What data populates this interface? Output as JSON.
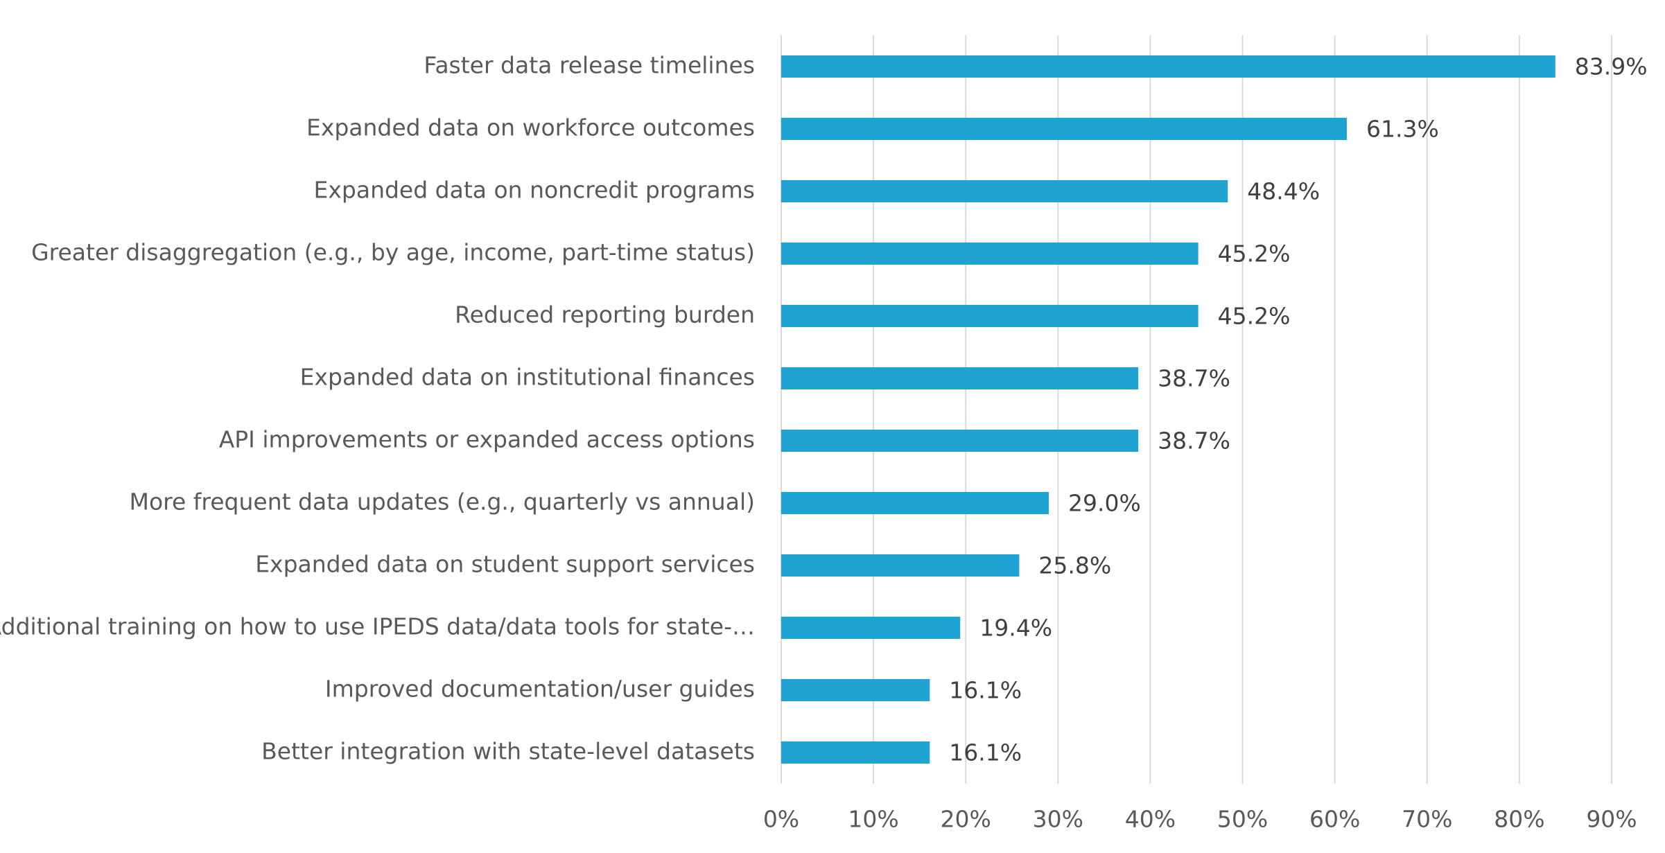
{
  "chart_data": {
    "type": "barh",
    "categories": [
      "Faster data release timelines",
      "Expanded data on workforce outcomes",
      "Expanded data on noncredit programs",
      "Greater disaggregation (e.g., by age, income, part-time status)",
      "Reduced reporting burden",
      "Expanded data on institutional finances",
      "API improvements or expanded access options",
      "More frequent data updates (e.g., quarterly vs annual)",
      "Expanded data on student support services",
      "Additional training on how to use IPEDS data/data tools for state-…",
      "Improved documentation/user guides",
      "Better integration with state-level datasets"
    ],
    "values": [
      83.9,
      61.3,
      48.4,
      45.2,
      45.2,
      38.7,
      38.7,
      29.0,
      25.8,
      19.4,
      16.1,
      16.1
    ],
    "value_labels": [
      "83.9%",
      "61.3%",
      "48.4%",
      "45.2%",
      "45.2%",
      "38.7%",
      "38.7%",
      "29.0%",
      "25.8%",
      "19.4%",
      "16.1%",
      "16.1%"
    ],
    "color": "#1ea3d2",
    "xlim": [
      0,
      90
    ],
    "xticks": [
      {
        "value": 0,
        "label": "0%"
      },
      {
        "value": 10,
        "label": "10%"
      },
      {
        "value": 20,
        "label": "20%"
      },
      {
        "value": 30,
        "label": "30%"
      },
      {
        "value": 40,
        "label": "40%"
      },
      {
        "value": 50,
        "label": "50%"
      },
      {
        "value": 60,
        "label": "60%"
      },
      {
        "value": 70,
        "label": "70%"
      },
      {
        "value": 80,
        "label": "80%"
      },
      {
        "value": 90,
        "label": "90%"
      }
    ],
    "grid": true
  }
}
